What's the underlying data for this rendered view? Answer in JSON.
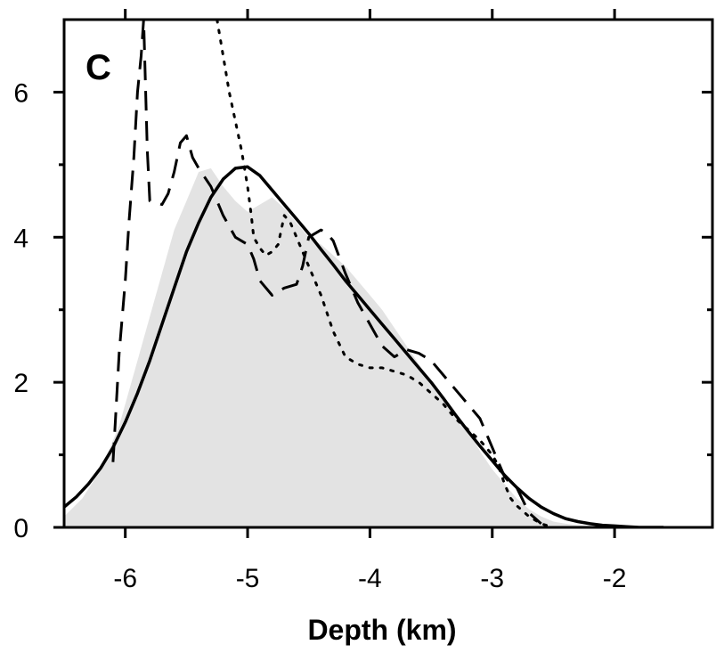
{
  "chart_data": {
    "type": "line",
    "panel_label": "C",
    "title": "",
    "xlabel": "Depth (km)",
    "ylabel": "",
    "xlim": [
      -6.5,
      -1.2
    ],
    "ylim": [
      0,
      7.0
    ],
    "x_ticks": [
      -6,
      -5,
      -4,
      -3,
      -2
    ],
    "x_tick_labels": [
      "-6",
      "-5",
      "-4",
      "-3",
      "-2"
    ],
    "y_ticks": [
      0,
      2,
      4,
      6
    ],
    "y_tick_labels": [
      "0",
      "2",
      "4",
      "6"
    ],
    "grid": false,
    "legend": "none",
    "series": [
      {
        "style": "filled-area",
        "color": "#e3e3e3",
        "x": [
          -6.5,
          -6.35,
          -6.2,
          -6.05,
          -5.9,
          -5.75,
          -5.6,
          -5.5,
          -5.4,
          -5.3,
          -5.2,
          -5.1,
          -5.0,
          -4.9,
          -4.8,
          -4.7,
          -4.6,
          -4.5,
          -4.4,
          -4.3,
          -4.2,
          -4.1,
          -4.0,
          -3.9,
          -3.8,
          -3.7,
          -3.6,
          -3.5,
          -3.4,
          -3.3,
          -3.2,
          -3.1,
          -3.0,
          -2.9,
          -2.8,
          -2.7,
          -2.6,
          -2.5,
          -2.4,
          -2.3,
          -2.2,
          -2.1,
          -2.0,
          -1.9,
          -1.8,
          -1.7,
          -1.6,
          -1.5
        ],
        "y": [
          0.15,
          0.4,
          0.8,
          1.4,
          2.3,
          3.2,
          4.1,
          4.5,
          4.9,
          4.95,
          4.7,
          4.5,
          4.35,
          4.45,
          4.55,
          4.4,
          4.2,
          4.0,
          3.9,
          3.75,
          3.6,
          3.4,
          3.2,
          3.0,
          2.75,
          2.5,
          2.25,
          2.0,
          1.75,
          1.55,
          1.35,
          1.05,
          0.8,
          0.6,
          0.4,
          0.25,
          0.15,
          0.08,
          0.05,
          0.03,
          0.02,
          0.01,
          0.0,
          0.0,
          0.0,
          0.0,
          0.0,
          0.0
        ]
      },
      {
        "style": "solid",
        "color": "#000000",
        "x": [
          -6.5,
          -6.4,
          -6.3,
          -6.2,
          -6.1,
          -6.0,
          -5.9,
          -5.8,
          -5.7,
          -5.6,
          -5.5,
          -5.4,
          -5.3,
          -5.2,
          -5.1,
          -5.0,
          -4.9,
          -4.8,
          -4.7,
          -4.6,
          -4.5,
          -4.4,
          -4.3,
          -4.2,
          -4.1,
          -4.0,
          -3.9,
          -3.8,
          -3.7,
          -3.6,
          -3.5,
          -3.4,
          -3.3,
          -3.2,
          -3.1,
          -3.0,
          -2.9,
          -2.8,
          -2.7,
          -2.6,
          -2.5,
          -2.4,
          -2.3,
          -2.2,
          -2.1,
          -2.0,
          -1.9,
          -1.8,
          -1.7,
          -1.6
        ],
        "y": [
          0.28,
          0.42,
          0.6,
          0.82,
          1.1,
          1.45,
          1.85,
          2.3,
          2.8,
          3.3,
          3.8,
          4.2,
          4.55,
          4.8,
          4.95,
          4.97,
          4.85,
          4.65,
          4.45,
          4.25,
          4.05,
          3.83,
          3.62,
          3.4,
          3.2,
          3.0,
          2.8,
          2.6,
          2.4,
          2.2,
          2.0,
          1.78,
          1.55,
          1.33,
          1.12,
          0.92,
          0.72,
          0.55,
          0.4,
          0.28,
          0.19,
          0.12,
          0.08,
          0.05,
          0.03,
          0.02,
          0.01,
          0.0,
          0.0,
          0.0
        ]
      },
      {
        "style": "dashed",
        "color": "#000000",
        "x": [
          -6.1,
          -6.08,
          -6.05,
          -6.0,
          -5.97,
          -5.93,
          -5.9,
          -5.87,
          -5.85,
          -5.82,
          -5.8,
          -5.7,
          -5.65,
          -5.6,
          -5.55,
          -5.5,
          -5.45,
          -5.4,
          -5.3,
          -5.25,
          -5.2,
          -5.1,
          -5.0,
          -4.95,
          -4.9,
          -4.8,
          -4.7,
          -4.6,
          -4.55,
          -4.5,
          -4.4,
          -4.35,
          -4.3,
          -4.2,
          -4.1,
          -4.0,
          -3.9,
          -3.8,
          -3.7,
          -3.6,
          -3.5,
          -3.4,
          -3.3,
          -3.2,
          -3.1,
          -3.0,
          -2.95,
          -2.9,
          -2.85,
          -2.8,
          -2.7,
          -2.6
        ],
        "y": [
          0.9,
          1.5,
          2.4,
          3.4,
          4.2,
          5.1,
          6.0,
          6.5,
          7.0,
          5.2,
          4.5,
          4.45,
          4.6,
          4.9,
          5.3,
          5.4,
          5.1,
          4.95,
          4.7,
          4.5,
          4.3,
          4.0,
          3.9,
          3.7,
          3.4,
          3.2,
          3.3,
          3.35,
          3.6,
          4.0,
          4.1,
          4.05,
          3.95,
          3.5,
          3.1,
          2.8,
          2.5,
          2.35,
          2.45,
          2.4,
          2.3,
          2.1,
          1.9,
          1.7,
          1.5,
          1.1,
          0.9,
          0.7,
          0.6,
          0.55,
          0.2,
          0.05
        ]
      },
      {
        "style": "dotted",
        "color": "#000000",
        "x": [
          -5.25,
          -5.2,
          -5.15,
          -5.1,
          -5.05,
          -5.0,
          -4.97,
          -4.95,
          -4.9,
          -4.85,
          -4.8,
          -4.75,
          -4.7,
          -4.65,
          -4.6,
          -4.55,
          -4.5,
          -4.4,
          -4.3,
          -4.2,
          -4.1,
          -4.0,
          -3.9,
          -3.8,
          -3.7,
          -3.6,
          -3.5,
          -3.4,
          -3.3,
          -3.2,
          -3.1,
          -3.0,
          -2.95,
          -2.9,
          -2.85,
          -2.8,
          -2.7,
          -2.6,
          -2.5
        ],
        "y": [
          7.0,
          6.5,
          6.0,
          5.6,
          5.2,
          4.7,
          4.3,
          4.0,
          3.85,
          3.75,
          3.8,
          3.9,
          4.3,
          4.2,
          4.0,
          3.8,
          3.6,
          3.2,
          2.7,
          2.35,
          2.25,
          2.2,
          2.2,
          2.15,
          2.1,
          2.0,
          1.85,
          1.7,
          1.5,
          1.35,
          1.2,
          1.0,
          0.85,
          0.6,
          0.4,
          0.3,
          0.15,
          0.05,
          0.0
        ]
      }
    ]
  }
}
